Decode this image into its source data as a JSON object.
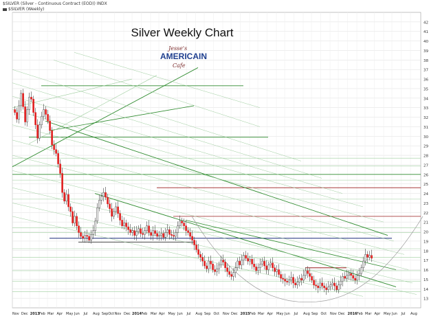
{
  "header": {
    "line1": "$SILVER (Silver - Continuous Contract (EOD)) INDX",
    "line2": "$SILVER (Weekly)"
  },
  "logo": {
    "line1": "Jesse's",
    "line2": "AMERICAIN",
    "line3": "Cafe"
  },
  "colors": {
    "up": "#ffffff",
    "down": "#e02020",
    "wick": "#444444",
    "grid": "#dddddd",
    "greenline": "#2e8b2e",
    "lightgreen": "#9ccc9c",
    "redline": "#9a1c1c",
    "blueline": "#1a2a7a",
    "arc": "#999999"
  },
  "chart_data": {
    "type": "candlestick",
    "title": "Silver Weekly Chart",
    "ylim": [
      12,
      43
    ],
    "y_ticks": [
      13,
      14,
      15,
      16,
      17,
      18,
      19,
      20,
      21,
      22,
      23,
      24,
      25,
      26,
      27,
      28,
      29,
      30,
      31,
      32,
      33,
      34,
      35,
      36,
      37,
      38,
      39,
      40,
      41,
      42
    ],
    "x_ticks": [
      "Nov",
      "Dec",
      "2013",
      "Feb",
      "Mar",
      "Apr",
      "May",
      "Jun",
      "Jul",
      "Aug",
      "SepOct",
      "Nov",
      "Dec",
      "2014",
      "Feb",
      "Mar",
      "Apr",
      "May",
      "Jun",
      "Jul",
      "Aug",
      "Sep",
      "Oct",
      "Nov",
      "Dec",
      "2015",
      "Feb",
      "Mar",
      "Apr",
      "May",
      "Jun",
      "Jul",
      "Aug",
      "Sep",
      "Oct",
      "Nov",
      "Dec",
      "2016",
      "Feb",
      "Mar",
      "Apr",
      "May",
      "Jun",
      "Jul",
      "Aug"
    ],
    "x_tick_weeks": [
      0,
      4.3,
      8.6,
      13,
      17,
      21.5,
      26,
      30,
      34.5,
      39,
      43.3,
      49.5,
      54,
      58,
      62.5,
      67,
      71,
      75.5,
      80,
      84.5,
      88.8,
      93,
      97.5,
      102,
      106,
      110.5,
      115,
      119,
      123.5,
      128,
      132,
      136.5,
      141,
      145,
      149.5,
      154,
      158,
      162.5,
      167,
      171,
      175.5,
      180,
      184,
      188.5,
      193
    ],
    "closes": [
      32.5,
      31.8,
      33.2,
      34.5,
      33.1,
      31.5,
      32.8,
      34.1,
      33.9,
      32.5,
      31.2,
      29.8,
      31.2,
      32.1,
      32.8,
      32.3,
      31.6,
      30.6,
      29.1,
      28.6,
      28.2,
      27.1,
      26.1,
      24.1,
      23.2,
      23.9,
      22.6,
      22.1,
      20.9,
      21.6,
      20.6,
      19.9,
      19.5,
      19.3,
      19.6,
      19.5,
      19.1,
      19.7,
      20.1,
      21.1,
      22.5,
      23.3,
      23.7,
      24.1,
      23.6,
      22.9,
      22.4,
      21.6,
      22.1,
      22.6,
      21.9,
      21.2,
      20.6,
      20.9,
      20.5,
      20.2,
      19.9,
      20.1,
      19.6,
      20.0,
      20.3,
      19.8,
      19.7,
      20.1,
      20.6,
      19.9,
      19.6,
      20.1,
      19.8,
      19.5,
      19.6,
      19.8,
      19.4,
      19.9,
      20.2,
      19.7,
      19.6,
      19.5,
      19.9,
      20.6,
      21.1,
      20.9,
      20.6,
      20.1,
      19.9,
      19.5,
      19.1,
      18.6,
      18.1,
      17.6,
      17.3,
      16.9,
      16.4,
      16.1,
      16.9,
      16.6,
      16.0,
      15.8,
      16.1,
      16.5,
      17.0,
      16.8,
      16.2,
      15.8,
      15.5,
      15.3,
      15.7,
      16.2,
      16.9,
      16.5,
      17.0,
      17.5,
      17.2,
      16.9,
      17.1,
      16.6,
      16.3,
      15.9,
      16.2,
      16.6,
      16.9,
      16.4,
      16.0,
      16.5,
      16.7,
      16.2,
      15.8,
      16.0,
      15.5,
      15.1,
      15.0,
      14.8,
      14.7,
      14.9,
      15.2,
      14.6,
      14.4,
      14.7,
      15.1,
      14.9,
      15.4,
      15.9,
      15.6,
      15.3,
      14.9,
      14.4,
      14.3,
      14.1,
      14.6,
      14.3,
      14.1,
      13.9,
      14.2,
      14.4,
      14.6,
      14.3,
      13.9,
      14.4,
      14.8,
      15.3,
      15.1,
      15.4,
      15.6,
      15.4,
      15.1,
      14.9,
      15.4,
      15.6,
      16.2,
      16.9,
      17.6,
      17.3,
      17.5,
      17.2
    ]
  }
}
